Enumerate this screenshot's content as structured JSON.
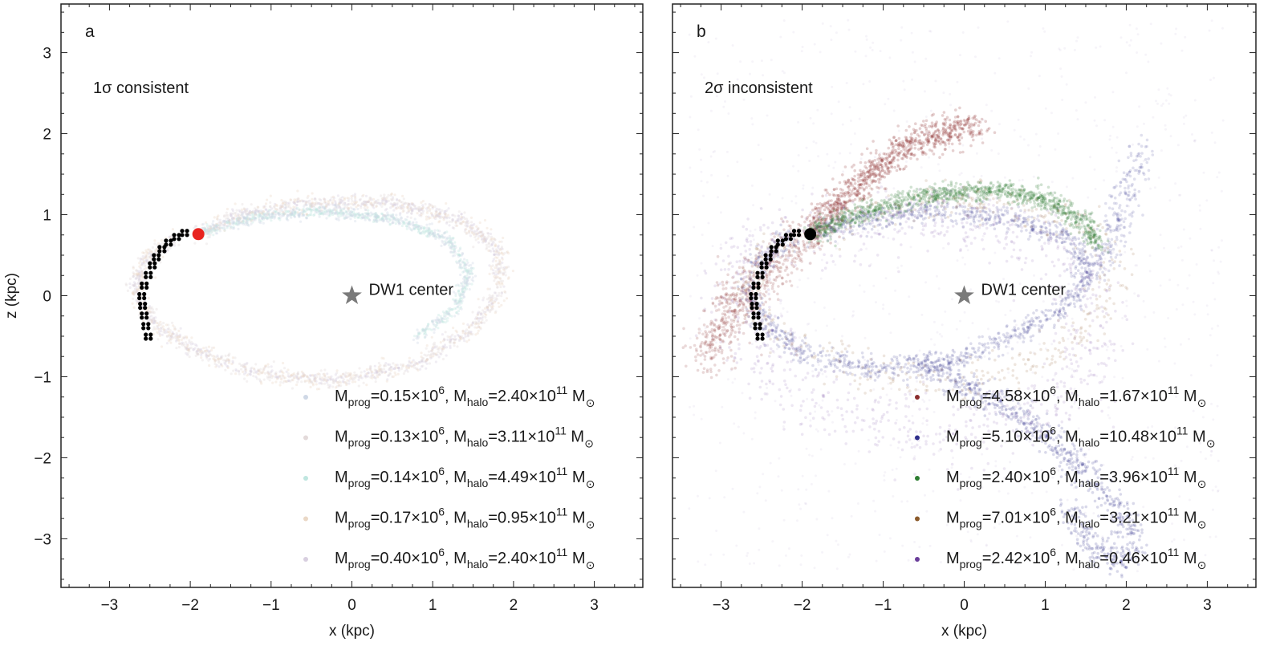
{
  "figure": {
    "panels": [
      {
        "letter": "a",
        "title": "1σ consistent",
        "center_label": "DW1 center",
        "progenitor_color": "#e8231f",
        "xlabel": "x (kpc)",
        "ylabel": "z (kpc)",
        "legend": [
          {
            "color": "#cfd8e6",
            "prog": "0.15",
            "halo": "2.40"
          },
          {
            "color": "#e3dada",
            "prog": "0.13",
            "halo": "3.11"
          },
          {
            "color": "#bfe6e0",
            "prog": "0.14",
            "halo": "4.49"
          },
          {
            "color": "#ead8c6",
            "prog": "0.17",
            "halo": "0.95"
          },
          {
            "color": "#d8cfe0",
            "prog": "0.40",
            "halo": "2.40"
          }
        ]
      },
      {
        "letter": "b",
        "title": "2σ inconsistent",
        "center_label": "DW1 center",
        "progenitor_color": "#000000",
        "xlabel": "x (kpc)",
        "ylabel": "",
        "legend": [
          {
            "color": "#8b2e2e",
            "prog": "4.58",
            "halo": "1.67"
          },
          {
            "color": "#2e2e8b",
            "prog": "5.10",
            "halo": "10.48"
          },
          {
            "color": "#2e7d32",
            "prog": "2.40",
            "halo": "3.96"
          },
          {
            "color": "#8b5a2b",
            "prog": "7.01",
            "halo": "3.21"
          },
          {
            "color": "#6a3d9a",
            "prog": "2.42",
            "halo": "0.46"
          }
        ]
      }
    ]
  },
  "chart_data": [
    {
      "type": "scatter",
      "title": "1σ consistent",
      "panel": "a",
      "xlabel": "x (kpc)",
      "ylabel": "z (kpc)",
      "xlim": [
        -3.6,
        3.6
      ],
      "ylim": [
        -3.6,
        3.6
      ],
      "xticks": [
        -3,
        -2,
        -1,
        0,
        1,
        2,
        3
      ],
      "yticks": [
        -3,
        -2,
        -1,
        0,
        1,
        2,
        3
      ],
      "center": {
        "label": "DW1 center",
        "x": 0,
        "y": 0
      },
      "progenitor": {
        "x": -1.9,
        "y": 0.76
      },
      "observed_track": [
        [
          -2.1,
          0.8
        ],
        [
          -2.2,
          0.75
        ],
        [
          -2.3,
          0.68
        ],
        [
          -2.38,
          0.6
        ],
        [
          -2.45,
          0.5
        ],
        [
          -2.5,
          0.4
        ],
        [
          -2.55,
          0.28
        ],
        [
          -2.6,
          0.15
        ],
        [
          -2.63,
          0.02
        ],
        [
          -2.62,
          -0.1
        ],
        [
          -2.6,
          -0.22
        ],
        [
          -2.58,
          -0.35
        ],
        [
          -2.55,
          -0.48
        ]
      ],
      "series": [
        {
          "name": "Mprog=0.15×10^6, Mhalo=2.40×10^11 M⊙",
          "m_prog": 0.15,
          "m_halo": 2.4,
          "color": "#cfd8e6"
        },
        {
          "name": "Mprog=0.13×10^6, Mhalo=3.11×10^11 M⊙",
          "m_prog": 0.13,
          "m_halo": 3.11,
          "color": "#e3dada"
        },
        {
          "name": "Mprog=0.14×10^6, Mhalo=4.49×10^11 M⊙",
          "m_prog": 0.14,
          "m_halo": 4.49,
          "color": "#bfe6e0"
        },
        {
          "name": "Mprog=0.17×10^6, Mhalo=0.95×10^11 M⊙",
          "m_prog": 0.17,
          "m_halo": 0.95,
          "color": "#ead8c6"
        },
        {
          "name": "Mprog=0.40×10^6, Mhalo=2.40×10^11 M⊙",
          "m_prog": 0.4,
          "m_halo": 2.4,
          "color": "#d8cfe0"
        }
      ]
    },
    {
      "type": "scatter",
      "title": "2σ inconsistent",
      "panel": "b",
      "xlabel": "x (kpc)",
      "ylabel": "",
      "xlim": [
        -3.6,
        3.6
      ],
      "ylim": [
        -3.6,
        3.6
      ],
      "xticks": [
        -3,
        -2,
        -1,
        0,
        1,
        2,
        3
      ],
      "yticks": [
        -3,
        -2,
        -1,
        0,
        1,
        2,
        3
      ],
      "center": {
        "label": "DW1 center",
        "x": 0,
        "y": 0
      },
      "progenitor": {
        "x": -1.9,
        "y": 0.76
      },
      "observed_track": [
        [
          -2.1,
          0.8
        ],
        [
          -2.2,
          0.75
        ],
        [
          -2.3,
          0.68
        ],
        [
          -2.38,
          0.6
        ],
        [
          -2.45,
          0.5
        ],
        [
          -2.5,
          0.4
        ],
        [
          -2.55,
          0.28
        ],
        [
          -2.6,
          0.15
        ],
        [
          -2.63,
          0.02
        ],
        [
          -2.62,
          -0.1
        ],
        [
          -2.6,
          -0.22
        ],
        [
          -2.58,
          -0.35
        ],
        [
          -2.55,
          -0.48
        ]
      ],
      "series": [
        {
          "name": "Mprog=4.58×10^6, Mhalo=1.67×10^11 M⊙",
          "m_prog": 4.58,
          "m_halo": 1.67,
          "color": "#8b2e2e"
        },
        {
          "name": "Mprog=5.10×10^6, Mhalo=10.48×10^11 M⊙",
          "m_prog": 5.1,
          "m_halo": 10.48,
          "color": "#2e2e8b"
        },
        {
          "name": "Mprog=2.40×10^6, Mhalo=3.96×10^11 M⊙",
          "m_prog": 2.4,
          "m_halo": 3.96,
          "color": "#2e7d32"
        },
        {
          "name": "Mprog=7.01×10^6, Mhalo=3.21×10^11 M⊙",
          "m_prog": 7.01,
          "m_halo": 3.21,
          "color": "#8b5a2b"
        },
        {
          "name": "Mprog=2.42×10^6, Mhalo=0.46×10^11 M⊙",
          "m_prog": 2.42,
          "m_halo": 0.46,
          "color": "#6a3d9a"
        }
      ]
    }
  ]
}
